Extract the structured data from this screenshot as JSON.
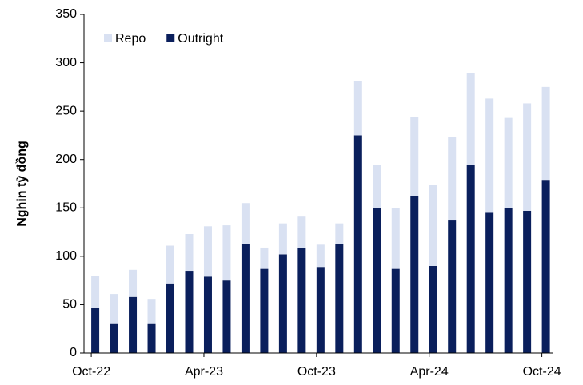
{
  "chart_data": {
    "type": "stacked_bar",
    "y_label": "Nghin tỷ đồng",
    "categories": [
      "Oct-22",
      null,
      null,
      null,
      null,
      null,
      "Apr-23",
      null,
      null,
      null,
      null,
      null,
      "Oct-23",
      null,
      null,
      null,
      null,
      null,
      "Apr-24",
      null,
      null,
      null,
      null,
      null,
      "Oct-24"
    ],
    "series": [
      {
        "name": "Outright",
        "color": "#0a1f5c",
        "values": [
          47,
          30,
          58,
          30,
          72,
          85,
          79,
          75,
          113,
          87,
          102,
          109,
          89,
          113,
          225,
          150,
          87,
          162,
          90,
          137,
          194,
          145,
          150,
          147,
          179
        ]
      },
      {
        "name": "Repo",
        "color": "#d9e1f2",
        "values": [
          33,
          31,
          28,
          26,
          39,
          38,
          52,
          57,
          42,
          22,
          32,
          32,
          23,
          21,
          56,
          44,
          63,
          82,
          84,
          86,
          95,
          118,
          93,
          111,
          96
        ]
      }
    ],
    "ylim": [
      0,
      350
    ],
    "yticks": [
      0,
      50,
      100,
      150,
      200,
      250,
      300,
      350
    ],
    "legend": "top-left"
  }
}
